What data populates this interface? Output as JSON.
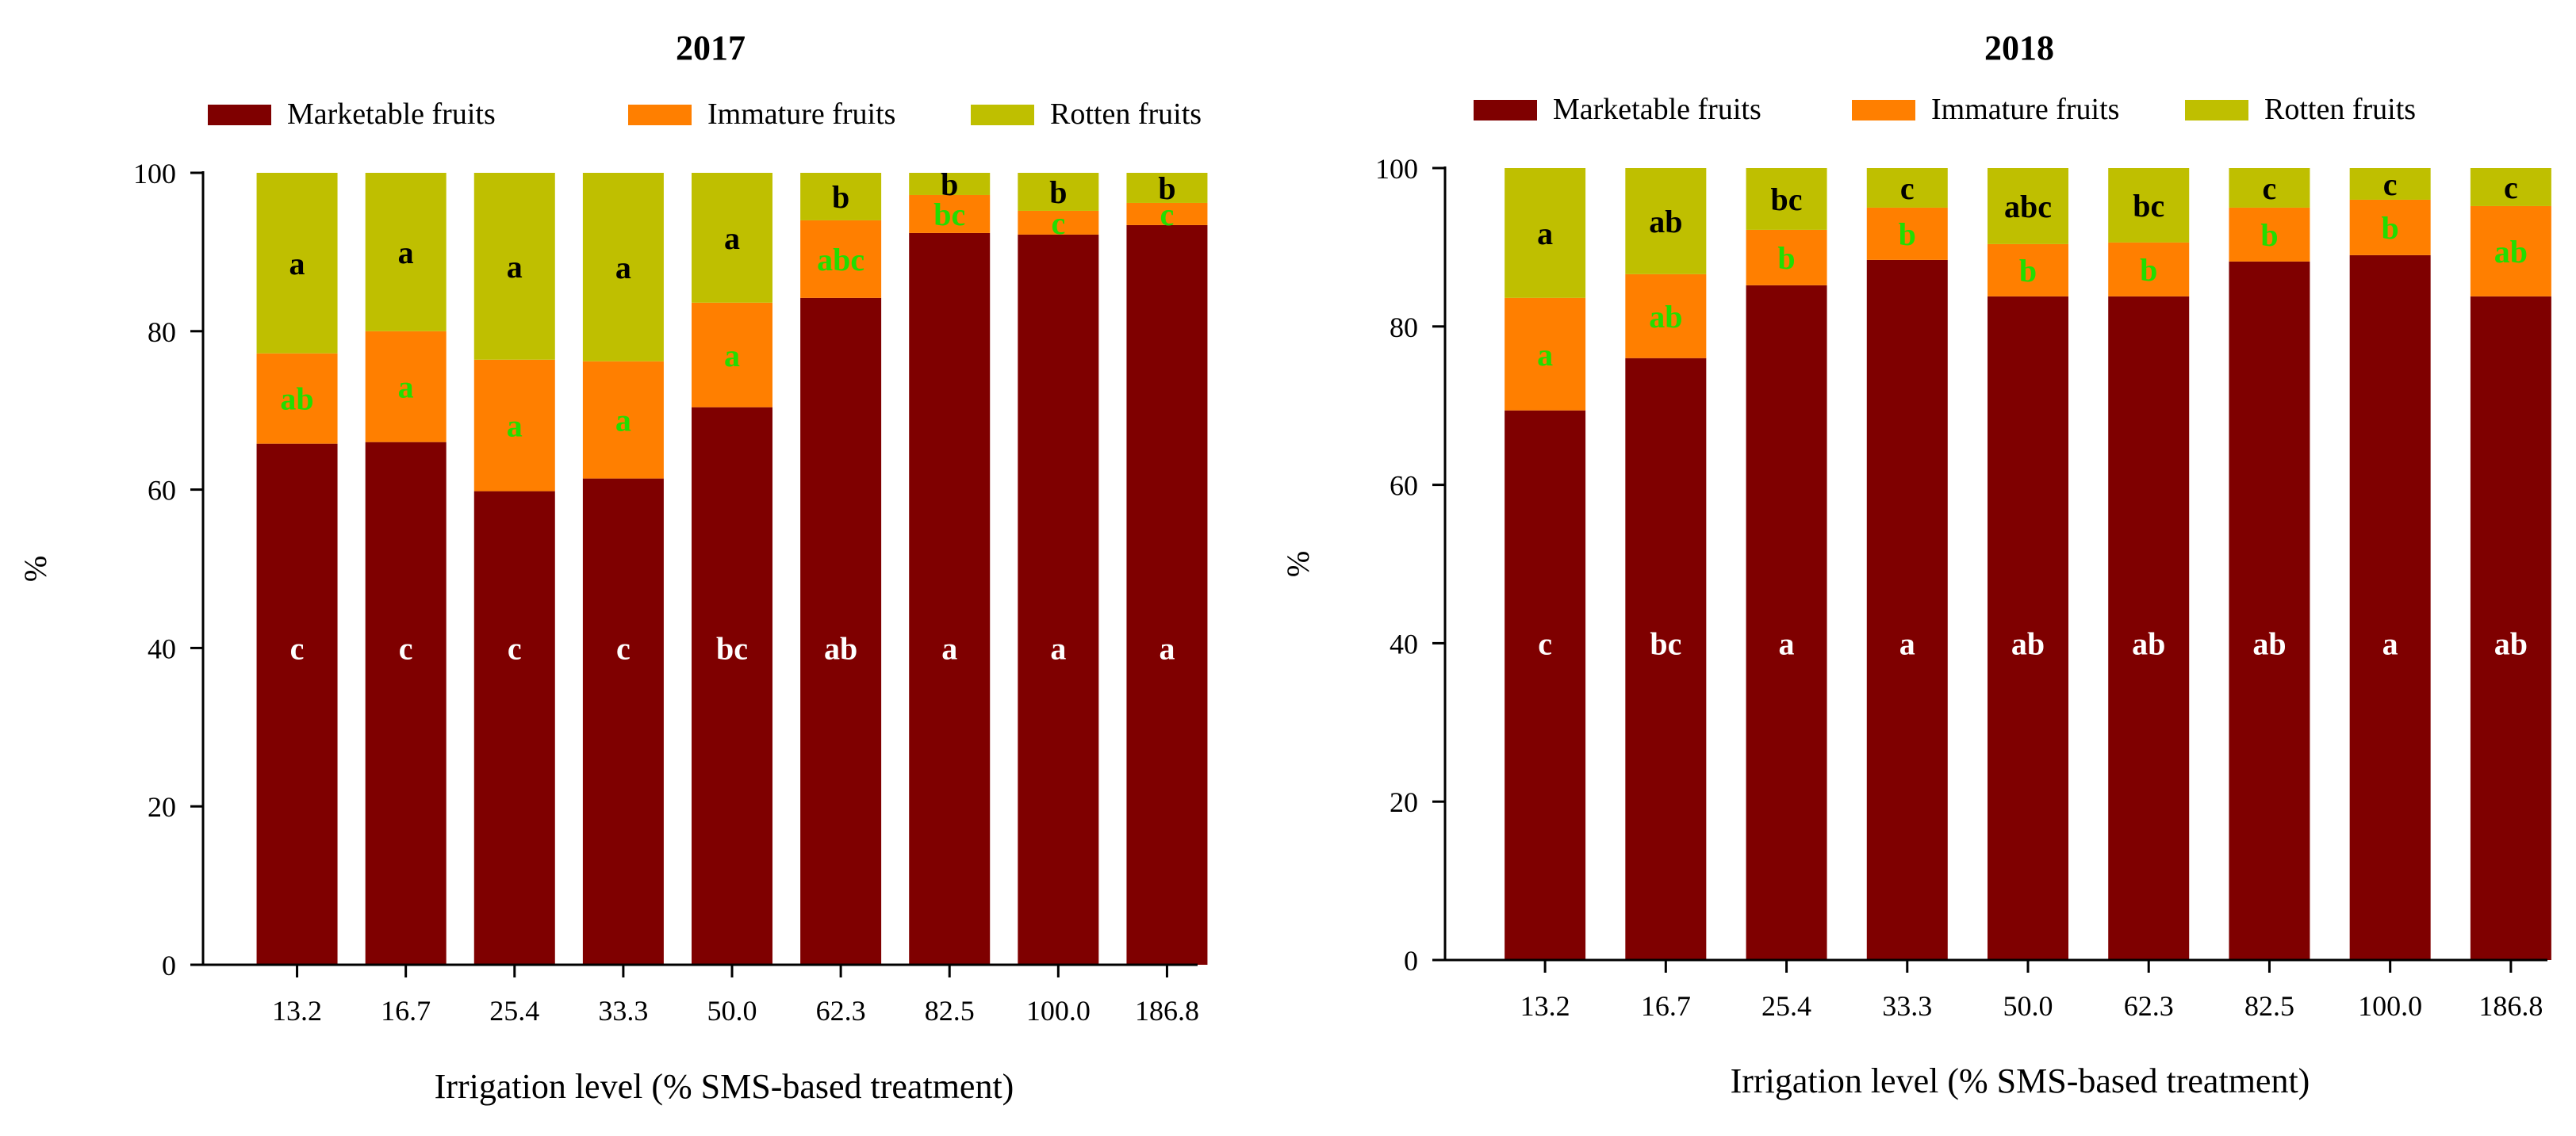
{
  "chart_data": [
    {
      "type": "bar",
      "stacked": true,
      "title": "2017",
      "xlabel": "Irrigation level (% SMS-based treatment)",
      "ylabel": "%",
      "ylim": [
        0,
        100
      ],
      "yticks": [
        "0",
        "20",
        "40",
        "60",
        "80",
        "100"
      ],
      "grid": false,
      "legend": "top",
      "categories": [
        "13.2",
        "16.7",
        "25.4",
        "33.3",
        "50.0",
        "62.3",
        "82.5",
        "100.0",
        "186.8"
      ],
      "series": [
        {
          "name": "Marketable fruits",
          "color": "#7f0000",
          "label_color": "#ffffff",
          "values": [
            65.8,
            66.0,
            59.8,
            61.4,
            70.4,
            84.2,
            92.4,
            92.2,
            93.4
          ],
          "letters": [
            "c",
            "c",
            "c",
            "c",
            "bc",
            "ab",
            "a",
            "a",
            "a"
          ]
        },
        {
          "name": "Immature fruits",
          "color": "#ff7f00",
          "label_color": "#22dd00",
          "values": [
            11.4,
            14.0,
            16.6,
            14.8,
            13.2,
            9.8,
            4.8,
            3.0,
            2.8
          ],
          "letters": [
            "ab",
            "a",
            "a",
            "a",
            "a",
            "abc",
            "bc",
            "c",
            "c"
          ]
        },
        {
          "name": "Rotten fruits",
          "color": "#bfbf00",
          "label_color": "#000000",
          "values": [
            22.8,
            20.0,
            23.6,
            23.8,
            16.4,
            6.0,
            2.8,
            4.8,
            3.8
          ],
          "letters": [
            "a",
            "a",
            "a",
            "a",
            "a",
            "b",
            "b",
            "b",
            "b"
          ]
        }
      ]
    },
    {
      "type": "bar",
      "stacked": true,
      "title": "2018",
      "xlabel": "Irrigation level (% SMS-based treatment)",
      "ylabel": "%",
      "ylim": [
        0,
        100
      ],
      "yticks": [
        "0",
        "20",
        "40",
        "60",
        "80",
        "100"
      ],
      "grid": false,
      "legend": "top",
      "categories": [
        "13.2",
        "16.7",
        "25.4",
        "33.3",
        "50.0",
        "62.3",
        "82.5",
        "100.0",
        "186.8"
      ],
      "series": [
        {
          "name": "Marketable fruits",
          "color": "#7f0000",
          "label_color": "#ffffff",
          "values": [
            69.4,
            76.0,
            85.2,
            88.4,
            83.8,
            83.8,
            88.2,
            89.0,
            83.8
          ],
          "letters": [
            "c",
            "bc",
            "a",
            "a",
            "ab",
            "ab",
            "ab",
            "a",
            "ab"
          ]
        },
        {
          "name": "Immature fruits",
          "color": "#ff7f00",
          "label_color": "#22dd00",
          "values": [
            14.2,
            10.6,
            7.0,
            6.6,
            6.6,
            6.8,
            6.8,
            7.0,
            11.4
          ],
          "letters": [
            "a",
            "ab",
            "b",
            "b",
            "b",
            "b",
            "b",
            "b",
            "ab"
          ]
        },
        {
          "name": "Rotten fruits",
          "color": "#bfbf00",
          "label_color": "#000000",
          "values": [
            16.4,
            13.4,
            7.8,
            5.0,
            9.6,
            9.4,
            5.0,
            4.0,
            4.8
          ],
          "letters": [
            "a",
            "ab",
            "bc",
            "c",
            "abc",
            "bc",
            "c",
            "c",
            "c"
          ]
        }
      ]
    }
  ]
}
